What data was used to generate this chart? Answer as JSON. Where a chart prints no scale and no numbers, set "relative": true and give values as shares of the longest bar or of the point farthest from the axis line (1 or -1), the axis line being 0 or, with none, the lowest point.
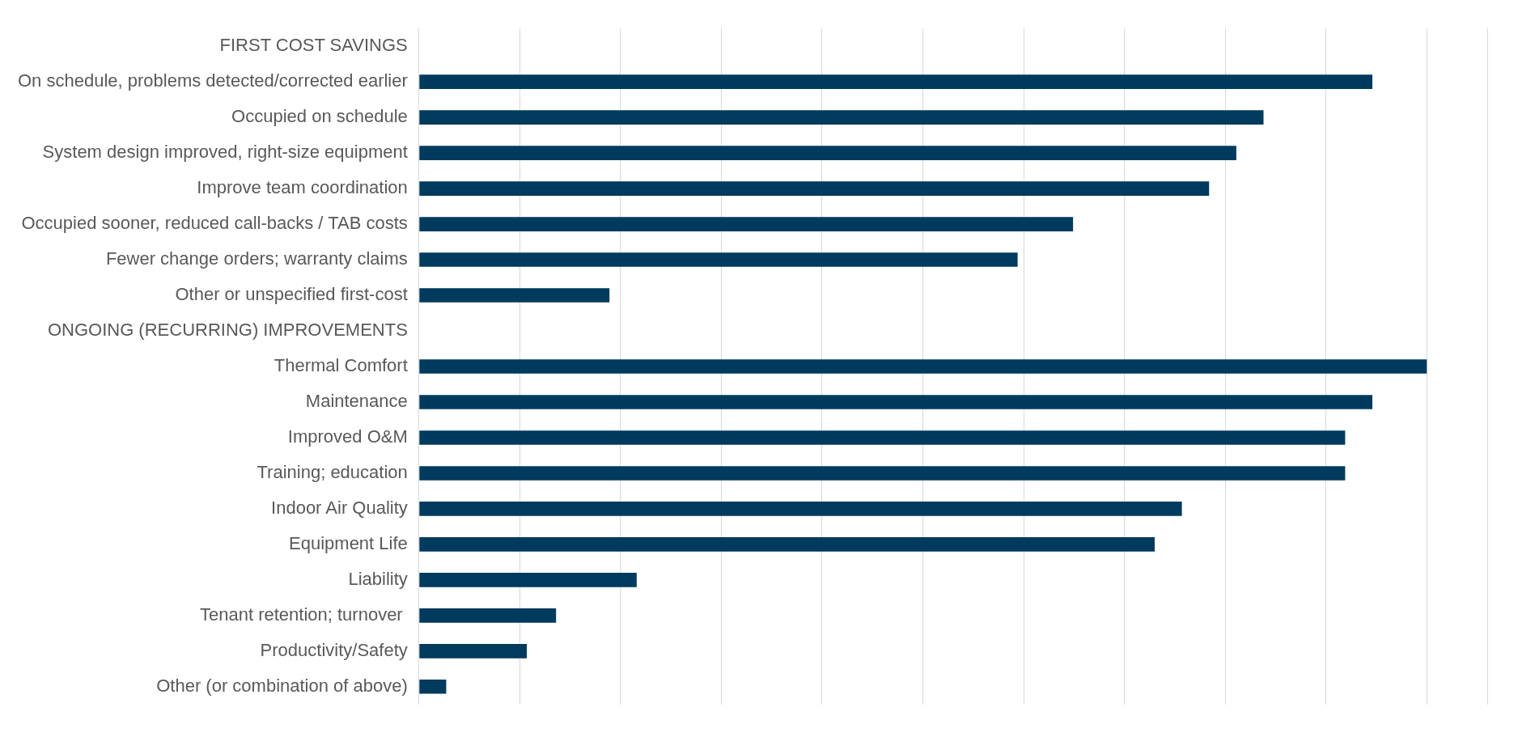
{
  "chart_data": {
    "type": "bar",
    "orientation": "horizontal",
    "relative": true,
    "grid": "x",
    "legend": false,
    "categories": [
      "FIRST COST SAVINGS",
      "On schedule, problems detected/corrected earlier",
      "Occupied on schedule",
      "System design improved, right-size equipment",
      "Improve team coordination",
      "Occupied sooner, reduced call-backs / TAB costs",
      "Fewer change orders; warranty claims",
      "Other or unspecified first-cost",
      "ONGOING (RECURRING) IMPROVEMENTS",
      "Thermal Comfort",
      "Maintenance",
      "Improved O&M",
      "Training; education",
      "Indoor Air Quality",
      "Equipment Life",
      "Liability",
      "Tenant retention; turnover ",
      "Productivity/Safety",
      "Other (or combination of above)"
    ],
    "values": [
      null,
      0.946,
      0.838,
      0.811,
      0.784,
      0.649,
      0.594,
      0.189,
      null,
      1,
      0.946,
      0.919,
      0.919,
      0.757,
      0.73,
      0.216,
      0.136,
      0.107,
      0.027
    ],
    "color": "#003a5c"
  }
}
